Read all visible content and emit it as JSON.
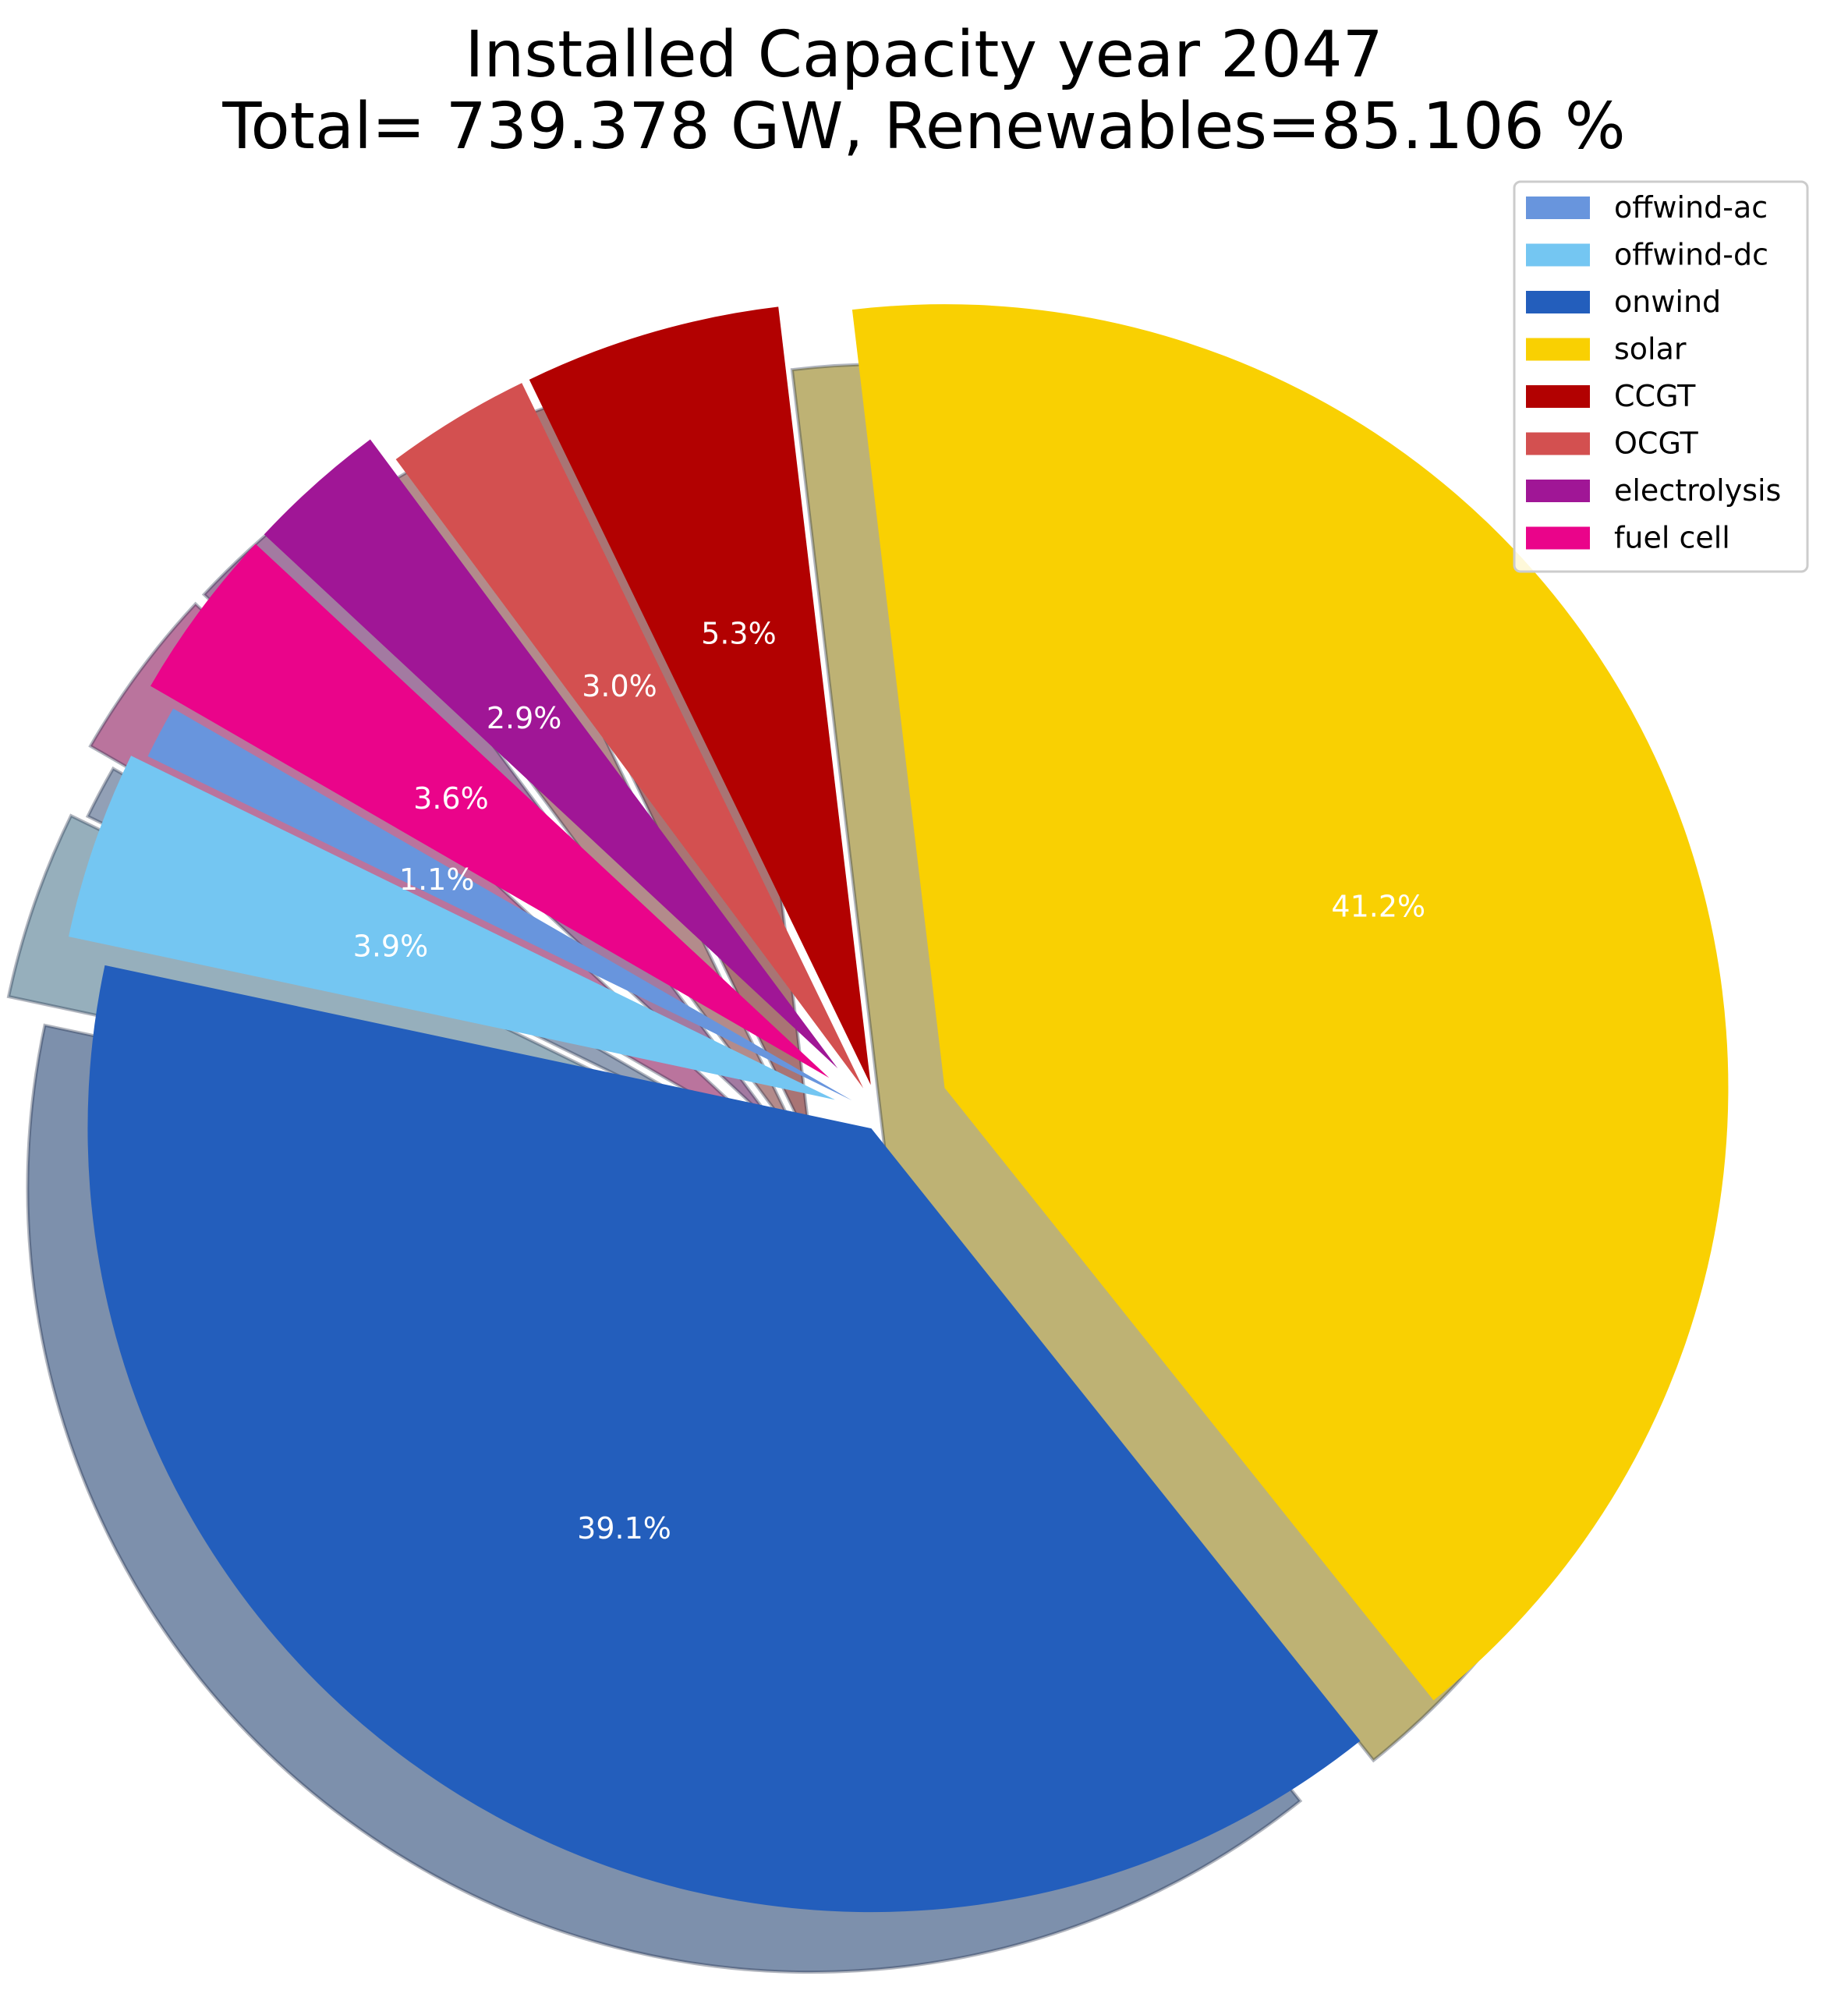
{
  "chart_data": {
    "type": "pie",
    "title": "Installed Capacity year 2047",
    "subtitle": "Total= 739.378 GW, Renewables=85.106 %",
    "legend_position": "top-right",
    "shadow": true,
    "exploded": true,
    "slices": [
      {
        "label": "offwind-ac",
        "value": 1.1,
        "pct_label": "1.1%",
        "color": "#6895dd"
      },
      {
        "label": "offwind-dc",
        "value": 3.9,
        "pct_label": "3.9%",
        "color": "#74c6f2"
      },
      {
        "label": "onwind",
        "value": 39.1,
        "pct_label": "39.1%",
        "color": "#235ebc"
      },
      {
        "label": "solar",
        "value": 41.2,
        "pct_label": "41.2%",
        "color": "#f9d002"
      },
      {
        "label": "CCGT",
        "value": 5.3,
        "pct_label": "5.3%",
        "color": "#b20101"
      },
      {
        "label": "OCGT",
        "value": 3.0,
        "pct_label": "3.0%",
        "color": "#d35050"
      },
      {
        "label": "electrolysis",
        "value": 2.9,
        "pct_label": "2.9%",
        "color": "#a01696"
      },
      {
        "label": "fuel cell",
        "value": 3.6,
        "pct_label": "3.6%",
        "color": "#ea048a"
      }
    ]
  }
}
